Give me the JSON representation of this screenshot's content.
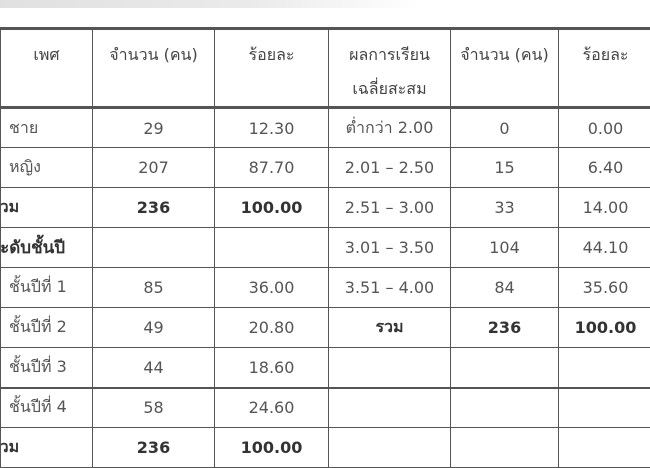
{
  "table": {
    "headers": [
      "เพศ",
      "จำนวน (คน)",
      "ร้อยละ",
      "ผลการเรียนเฉลี่ยสะสม",
      "จำนวน (คน)",
      "ร้อยละ"
    ],
    "header_lines": {
      "gpa_line1": "ผลการเรียน",
      "gpa_line2": "เฉลี่ยสะสม"
    },
    "rows": [
      [
        "ชาย",
        "29",
        "12.30",
        "ต่ำกว่า 2.00",
        "0",
        "0.00"
      ],
      [
        "หญิง",
        "207",
        "87.70",
        "2.01 – 2.50",
        "15",
        "6.40"
      ],
      [
        "รวม",
        "236",
        "100.00",
        "2.51 – 3.00",
        "33",
        "14.00"
      ],
      [
        "ระดับชั้นปี",
        "",
        "",
        "3.01 – 3.50",
        "104",
        "44.10"
      ],
      [
        "ชั้นปีที่ 1",
        "85",
        "36.00",
        "3.51 – 4.00",
        "84",
        "35.60"
      ],
      [
        "ชั้นปีที่ 2",
        "49",
        "20.80",
        "รวม",
        "236",
        "100.00"
      ],
      [
        "ชั้นปีที่ 3",
        "44",
        "18.60",
        "",
        "",
        ""
      ],
      [
        "ชั้นปีที่ 4",
        "58",
        "24.60",
        "",
        "",
        ""
      ],
      [
        "รวม",
        "236",
        "100.00",
        "",
        "",
        ""
      ]
    ]
  }
}
